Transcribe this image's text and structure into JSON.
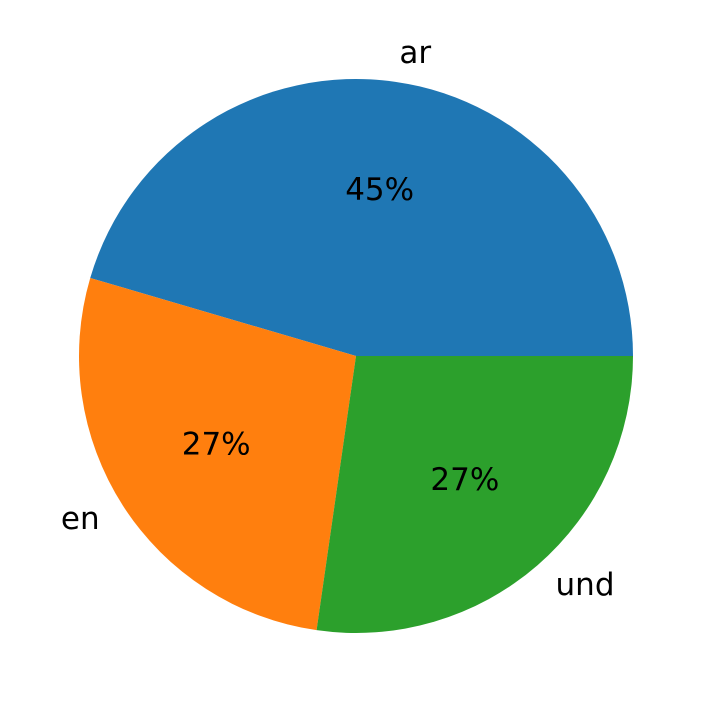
{
  "chart_data": {
    "type": "pie",
    "categories": [
      "ar",
      "en",
      "und"
    ],
    "values": [
      45,
      27,
      27
    ],
    "value_labels": [
      "45%",
      "27%",
      "27%"
    ],
    "colors": [
      "#1f77b4",
      "#ff7f0e",
      "#2ca02c"
    ]
  }
}
